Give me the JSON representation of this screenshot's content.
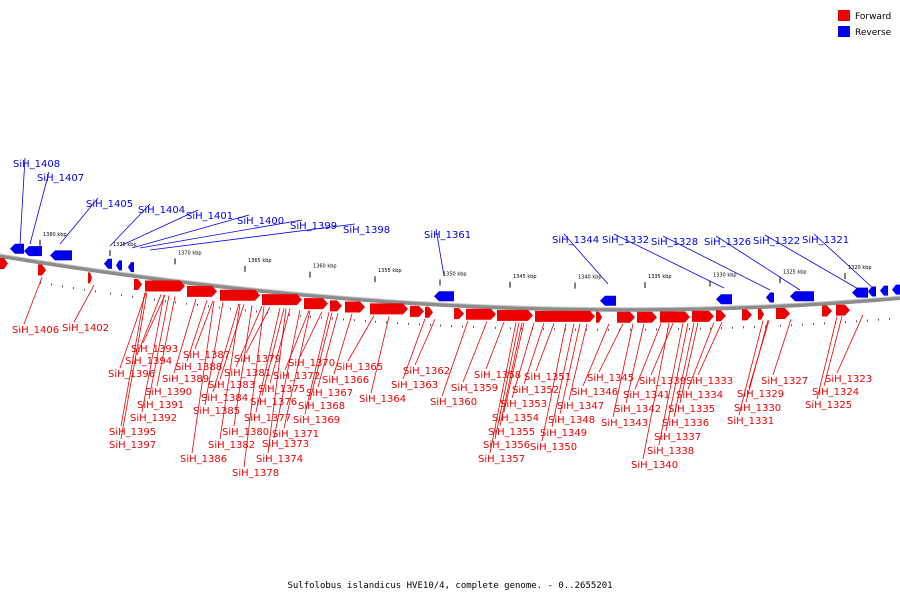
{
  "legend": [
    {
      "label": "Forward",
      "color": "#ee0000"
    },
    {
      "label": "Reverse",
      "color": "#0000ee"
    }
  ],
  "caption": "Sulfolobus islandicus HVE10/4, complete genome. - 0..2655201",
  "scale_ticks": [
    {
      "label": "1380 kbp",
      "kbp": 1380
    },
    {
      "label": "1375 kbp",
      "kbp": 1375
    },
    {
      "label": "1370 kbp",
      "kbp": 1370
    },
    {
      "label": "1365 kbp",
      "kbp": 1365
    },
    {
      "label": "1360 kbp",
      "kbp": 1360
    },
    {
      "label": "1355 kbp",
      "kbp": 1355
    },
    {
      "label": "1350 kbp",
      "kbp": 1350
    },
    {
      "label": "1345 kbp",
      "kbp": 1345
    },
    {
      "label": "1340 kbp",
      "kbp": 1340
    },
    {
      "label": "1335 kbp",
      "kbp": 1335
    },
    {
      "label": "1330 kbp",
      "kbp": 1330
    },
    {
      "label": "1325 kbp",
      "kbp": 1325
    },
    {
      "label": "1320 kbp",
      "kbp": 1320
    }
  ],
  "reverse_genes": [
    "SiH_1408",
    "SiH_1407",
    "SiH_1405",
    "SiH_1404",
    "SiH_1401",
    "SiH_1400",
    "SiH_1399",
    "SiH_1398",
    "SiH_1361",
    "SiH_1344",
    "SiH_1332",
    "SiH_1328",
    "SiH_1326",
    "SiH_1322",
    "SiH_1321"
  ],
  "forward_genes": [
    "SiH_1406",
    "SiH_1402",
    "SiH_1393",
    "SiH_1394",
    "SiH_1396",
    "SiH_1390",
    "SiH_1391",
    "SiH_1392",
    "SiH_1395",
    "SiH_1397",
    "SiH_1387",
    "SiH_1388",
    "SiH_1389",
    "SiH_1383",
    "SiH_1384",
    "SiH_1385",
    "SiH_1382",
    "SiH_1386",
    "SiH_1379",
    "SiH_1381",
    "SiH_1380",
    "SiH_1375",
    "SiH_1376",
    "SiH_1377",
    "SiH_1373",
    "SiH_1374",
    "SiH_1378",
    "SiH_1370",
    "SiH_1372",
    "SiH_1371",
    "SiH_1366",
    "SiH_1367",
    "SiH_1368",
    "SiH_1369",
    "SiH_1365",
    "SiH_1364",
    "SiH_1362",
    "SiH_1363",
    "SiH_1359",
    "SiH_1360",
    "SiH_1358",
    "SiH_1354",
    "SiH_1355",
    "SiH_1356",
    "SiH_1357",
    "SiH_1351",
    "SiH_1352",
    "SiH_1353",
    "SiH_1345",
    "SiH_1346",
    "SiH_1347",
    "SiH_1348",
    "SiH_1349",
    "SiH_1350",
    "SiH_1341",
    "SiH_1342",
    "SiH_1343",
    "SiH_1339",
    "SiH_1333",
    "SiH_1334",
    "SiH_1335",
    "SiH_1336",
    "SiH_1337",
    "SiH_1338",
    "SiH_1340",
    "SiH_1327",
    "SiH_1329",
    "SiH_1330",
    "SiH_1331",
    "SiH_1323",
    "SiH_1324",
    "SiH_1325"
  ]
}
